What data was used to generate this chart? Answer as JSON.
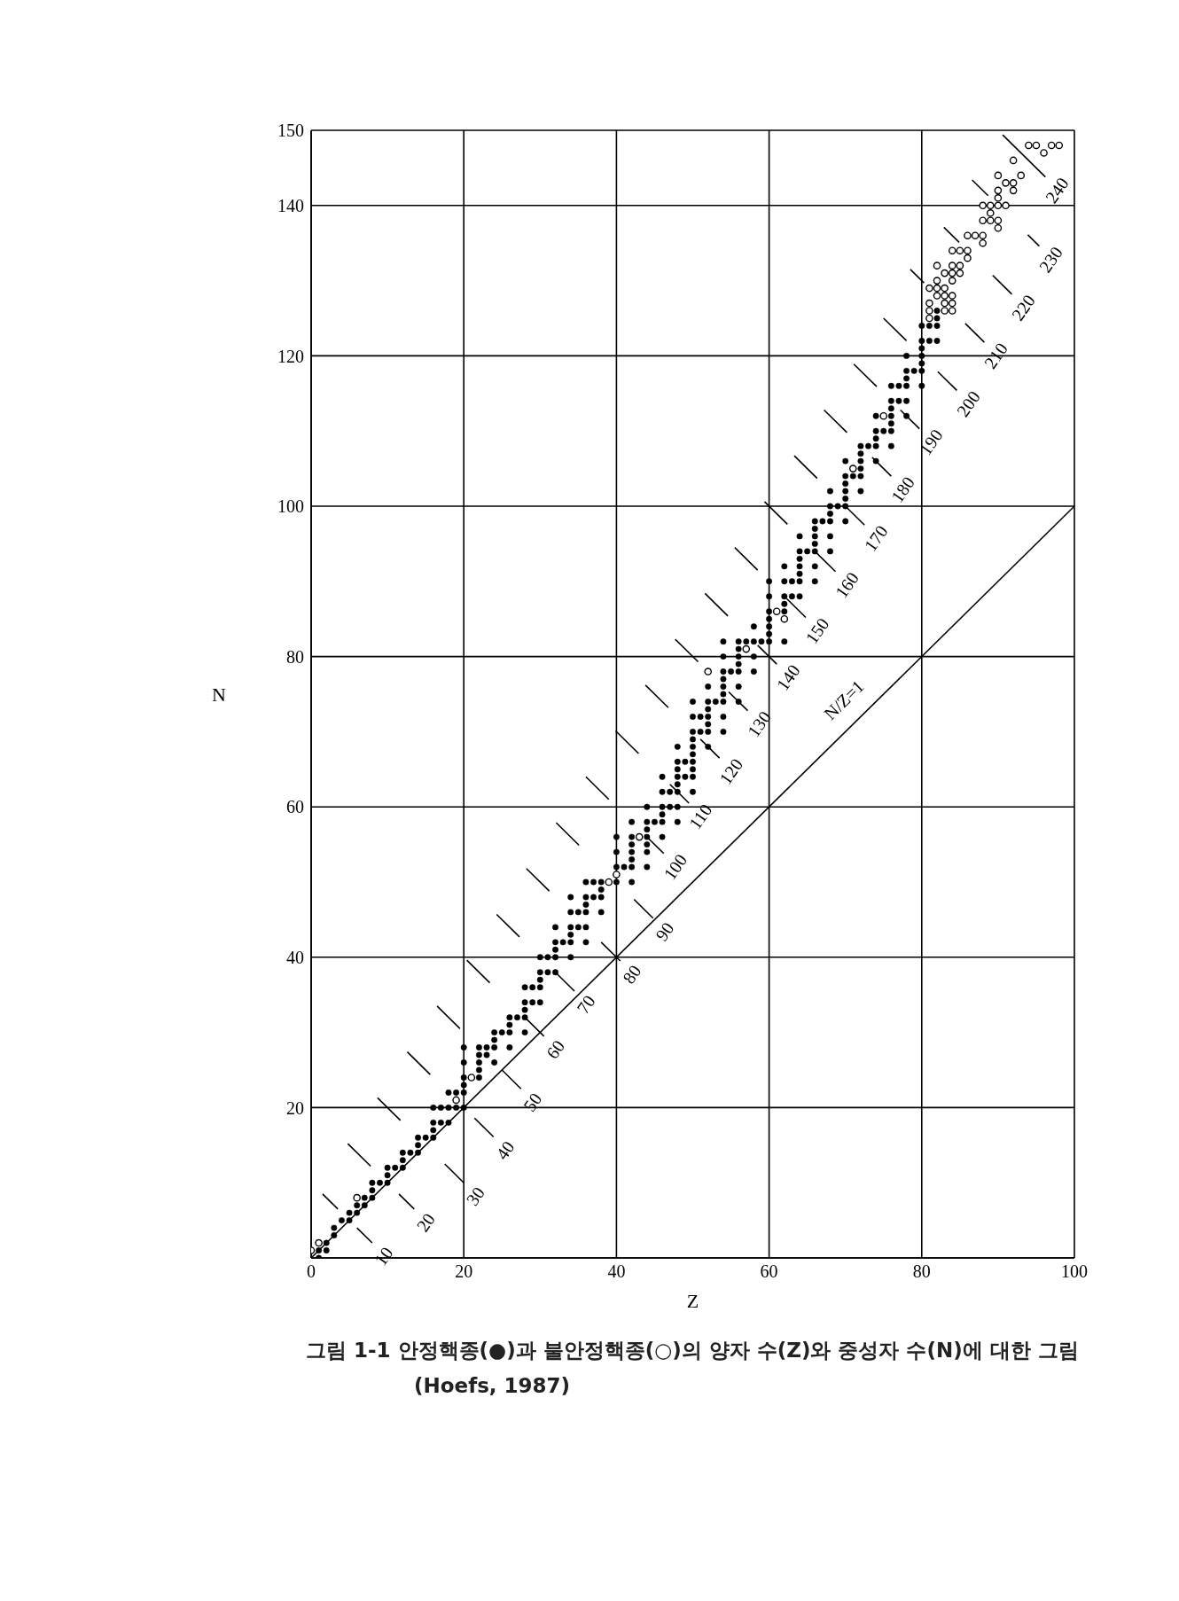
{
  "chart_data": {
    "type": "scatter",
    "xlabel": "Z",
    "ylabel": "N",
    "xlim": [
      0,
      100
    ],
    "xticks": [
      0,
      20,
      40,
      60,
      80,
      100
    ],
    "ylim": [
      0,
      150
    ],
    "yticks": [
      {
        "value": 0,
        "label": null
      },
      20,
      40,
      60,
      80,
      100,
      120,
      140,
      150
    ],
    "grid": true,
    "marker": "circle",
    "series": [
      {
        "color": "#000000",
        "x": [
          1,
          1,
          2,
          2,
          3,
          3,
          4,
          5,
          5,
          6,
          6,
          7,
          7,
          8,
          8,
          8,
          9,
          10,
          10,
          10,
          11,
          12,
          12,
          12,
          13,
          14,
          14,
          14,
          15,
          16,
          16,
          16,
          16,
          17,
          17,
          18,
          18,
          18,
          19,
          19,
          20,
          20,
          20,
          20,
          20,
          20,
          22,
          22,
          22,
          22,
          22,
          23,
          23,
          24,
          24,
          24,
          24,
          25,
          26,
          26,
          26,
          26,
          27,
          28,
          28,
          28,
          28,
          28,
          29,
          29,
          30,
          30,
          30,
          30,
          30,
          31,
          31,
          32,
          32,
          32,
          32,
          32,
          33,
          34,
          34,
          34,
          34,
          34,
          34,
          35,
          35,
          36,
          36,
          36,
          36,
          36,
          36,
          37,
          37,
          38,
          38,
          38,
          38,
          40,
          40,
          40,
          40,
          41,
          42,
          42,
          42,
          42,
          42,
          42,
          42,
          44,
          44,
          44,
          44,
          44,
          44,
          44,
          45,
          46,
          46,
          46,
          46,
          46,
          46,
          47,
          47,
          48,
          48,
          48,
          48,
          48,
          48,
          48,
          48,
          49,
          49,
          50,
          50,
          50,
          50,
          50,
          50,
          50,
          50,
          50,
          50,
          51,
          51,
          52,
          52,
          52,
          52,
          52,
          52,
          52,
          53,
          54,
          54,
          54,
          54,
          54,
          54,
          54,
          54,
          54,
          55,
          56,
          56,
          56,
          56,
          56,
          56,
          56,
          57,
          58,
          58,
          58,
          58,
          59,
          60,
          60,
          60,
          60,
          60,
          60,
          60,
          62,
          62,
          62,
          62,
          62,
          62,
          63,
          63,
          64,
          64,
          64,
          64,
          64,
          64,
          64,
          65,
          66,
          66,
          66,
          66,
          66,
          66,
          66,
          67,
          68,
          68,
          68,
          68,
          68,
          68,
          69,
          70,
          70,
          70,
          70,
          70,
          70,
          70,
          71,
          72,
          72,
          72,
          72,
          72,
          72,
          73,
          74,
          74,
          74,
          74,
          74,
          75,
          76,
          76,
          76,
          76,
          76,
          76,
          76,
          77,
          77,
          78,
          78,
          78,
          78,
          78,
          78,
          79,
          80,
          80,
          80,
          80,
          80,
          80,
          80,
          81,
          81,
          82,
          82,
          82,
          82
        ],
        "values": [
          0,
          1,
          1,
          2,
          3,
          4,
          5,
          5,
          6,
          6,
          7,
          7,
          8,
          8,
          9,
          10,
          10,
          10,
          11,
          12,
          12,
          12,
          13,
          14,
          14,
          14,
          15,
          16,
          16,
          16,
          17,
          18,
          20,
          18,
          20,
          18,
          20,
          22,
          20,
          22,
          20,
          22,
          23,
          24,
          26,
          28,
          24,
          25,
          26,
          27,
          28,
          27,
          28,
          26,
          28,
          29,
          30,
          30,
          28,
          30,
          31,
          32,
          32,
          30,
          32,
          33,
          34,
          36,
          34,
          36,
          34,
          36,
          37,
          38,
          40,
          38,
          40,
          38,
          40,
          41,
          42,
          44,
          42,
          40,
          42,
          43,
          44,
          46,
          48,
          44,
          46,
          42,
          44,
          46,
          47,
          48,
          50,
          48,
          50,
          46,
          48,
          49,
          50,
          50,
          52,
          54,
          56,
          52,
          50,
          52,
          53,
          54,
          55,
          56,
          58,
          52,
          54,
          55,
          56,
          57,
          58,
          60,
          58,
          56,
          58,
          59,
          60,
          62,
          64,
          60,
          62,
          58,
          60,
          62,
          63,
          64,
          65,
          66,
          68,
          64,
          66,
          62,
          64,
          65,
          66,
          67,
          68,
          69,
          70,
          72,
          74,
          70,
          72,
          68,
          70,
          71,
          72,
          73,
          74,
          76,
          74,
          70,
          72,
          74,
          75,
          76,
          77,
          78,
          80,
          82,
          78,
          74,
          76,
          78,
          79,
          80,
          81,
          82,
          82,
          78,
          80,
          82,
          84,
          82,
          82,
          83,
          84,
          85,
          86,
          88,
          90,
          82,
          86,
          87,
          88,
          90,
          92,
          88,
          90,
          88,
          90,
          91,
          92,
          93,
          94,
          96,
          94,
          90,
          92,
          94,
          95,
          96,
          97,
          98,
          98,
          94,
          96,
          98,
          99,
          100,
          102,
          100,
          98,
          100,
          101,
          102,
          103,
          104,
          106,
          104,
          102,
          104,
          105,
          106,
          107,
          108,
          108,
          106,
          108,
          109,
          110,
          112,
          110,
          108,
          110,
          111,
          112,
          113,
          114,
          116,
          114,
          116,
          112,
          114,
          116,
          117,
          118,
          120,
          118,
          116,
          118,
          119,
          120,
          121,
          122,
          124,
          122,
          124,
          122,
          124,
          125,
          126
        ]
      },
      {
        "color": "#000000",
        "x": [
          0,
          1,
          6,
          19,
          21,
          39,
          40,
          43,
          52,
          57,
          61,
          62,
          71,
          75,
          81,
          81,
          81,
          81,
          82,
          82,
          82,
          82,
          83,
          83,
          83,
          83,
          83,
          84,
          84,
          84,
          84,
          84,
          84,
          84,
          85,
          85,
          85,
          86,
          86,
          86,
          87,
          88,
          88,
          88,
          89,
          89,
          88,
          89,
          90,
          90,
          90,
          90,
          90,
          90,
          91,
          91,
          92,
          92,
          92,
          93,
          94,
          95,
          96,
          97,
          98
        ],
        "values": [
          1,
          2,
          8,
          21,
          24,
          50,
          51,
          56,
          78,
          81,
          86,
          85,
          105,
          112,
          129,
          127,
          126,
          125,
          132,
          130,
          129,
          128,
          131,
          129,
          128,
          127,
          126,
          132,
          131,
          130,
          128,
          127,
          126,
          134,
          134,
          132,
          131,
          134,
          133,
          136,
          136,
          136,
          135,
          138,
          138,
          139,
          140,
          140,
          138,
          137,
          140,
          141,
          142,
          144,
          140,
          143,
          142,
          143,
          146,
          144,
          148,
          148,
          147,
          148,
          148
        ]
      },
      {
        "type": "line",
        "name": "N/Z=1",
        "color": "#000000",
        "marker": "none",
        "x": [
          0,
          100
        ],
        "values": [
          0,
          100
        ]
      },
      {
        "type": "line",
        "name": "10",
        "color": "#000000",
        "marker": "none",
        "x": [
          1.5,
          3.5,
          4.7,
          6,
          8
        ],
        "values": [
          8.5,
          6.5,
          null,
          4,
          2
        ]
      },
      {
        "type": "line",
        "name": "20",
        "color": "#000000",
        "marker": "none",
        "x": [
          4.8,
          7.8,
          9.6,
          11.5,
          13.5
        ],
        "values": [
          15.2,
          12.2,
          null,
          8.5,
          6.5
        ]
      },
      {
        "type": "line",
        "name": "30",
        "color": "#000000",
        "marker": "none",
        "x": [
          8.7,
          11.7,
          14.6,
          17.5,
          20
        ],
        "values": [
          21.3,
          18.3,
          null,
          12.5,
          10
        ]
      },
      {
        "type": "line",
        "name": "40",
        "color": "#000000",
        "marker": "none",
        "x": [
          12.6,
          15.6,
          18.5,
          21.4,
          23.9
        ],
        "values": [
          27.4,
          24.4,
          null,
          18.6,
          16.1
        ]
      },
      {
        "type": "line",
        "name": "50",
        "color": "#000000",
        "marker": "none",
        "x": [
          16.5,
          19.5,
          22.2,
          25,
          27.5
        ],
        "values": [
          33.5,
          30.5,
          null,
          25,
          22.5
        ]
      },
      {
        "type": "line",
        "name": "60",
        "color": "#000000",
        "marker": "none",
        "x": [
          20.4,
          23.4,
          25.7,
          28,
          30.5
        ],
        "values": [
          39.6,
          36.6,
          null,
          32,
          29.5
        ]
      },
      {
        "type": "line",
        "name": "70",
        "color": "#000000",
        "marker": "none",
        "x": [
          24.3,
          27.3,
          29.6,
          32,
          34.5
        ],
        "values": [
          45.7,
          42.7,
          null,
          38,
          35.5
        ]
      },
      {
        "type": "line",
        "name": "80",
        "color": "#000000",
        "marker": "none",
        "x": [
          28.2,
          31.2,
          34.6,
          38,
          40.5
        ],
        "values": [
          51.8,
          48.8,
          null,
          42,
          39.5
        ]
      },
      {
        "type": "line",
        "name": "90",
        "color": "#000000",
        "marker": "none",
        "x": [
          32.1,
          35.1,
          38.7,
          42.3,
          44.8
        ],
        "values": [
          57.9,
          54.9,
          null,
          47.7,
          45.2
        ]
      },
      {
        "type": "line",
        "name": "100",
        "color": "#000000",
        "marker": "none",
        "x": [
          36,
          39,
          41.3,
          43.7,
          46.2
        ],
        "values": [
          64,
          61,
          null,
          56.3,
          53.8
        ]
      },
      {
        "type": "line",
        "name": "110",
        "color": "#000000",
        "marker": "none",
        "x": [
          39.9,
          42.9,
          45,
          47,
          49.5
        ],
        "values": [
          70.1,
          67.1,
          null,
          63,
          60.5
        ]
      },
      {
        "type": "line",
        "name": "120",
        "color": "#000000",
        "marker": "none",
        "x": [
          43.8,
          46.8,
          48.9,
          51,
          53.5
        ],
        "values": [
          76.2,
          73.2,
          null,
          69,
          66.5
        ]
      },
      {
        "type": "line",
        "name": "130",
        "color": "#000000",
        "marker": "none",
        "x": [
          47.7,
          50.7,
          52.7,
          54.7,
          57.2
        ],
        "values": [
          82.3,
          79.3,
          null,
          75.3,
          72.8
        ]
      },
      {
        "type": "line",
        "name": "140",
        "color": "#000000",
        "marker": "none",
        "x": [
          51.6,
          54.6,
          56.5,
          58.5,
          61
        ],
        "values": [
          88.4,
          85.4,
          null,
          81.5,
          79
        ]
      },
      {
        "type": "line",
        "name": "150",
        "color": "#000000",
        "marker": "none",
        "x": [
          55.5,
          58.5,
          60.4,
          62.3,
          64.8
        ],
        "values": [
          94.5,
          91.5,
          null,
          87.7,
          85.2
        ]
      },
      {
        "type": "line",
        "name": "160",
        "color": "#000000",
        "marker": "none",
        "x": [
          59.4,
          62.4,
          64.3,
          66.2,
          68.7
        ],
        "values": [
          100.6,
          97.6,
          null,
          93.8,
          91.3
        ]
      },
      {
        "type": "line",
        "name": "170",
        "color": "#000000",
        "marker": "none",
        "x": [
          63.3,
          66.3,
          68.1,
          70,
          72.5
        ],
        "values": [
          106.7,
          103.7,
          null,
          100,
          97.5
        ]
      },
      {
        "type": "line",
        "name": "180",
        "color": "#000000",
        "marker": "none",
        "x": [
          67.2,
          70.2,
          71.8,
          73.5,
          76
        ],
        "values": [
          112.8,
          109.8,
          null,
          106.5,
          104
        ]
      },
      {
        "type": "line",
        "name": "190",
        "color": "#000000",
        "marker": "none",
        "x": [
          71.1,
          74.1,
          75.6,
          77.2,
          79.7
        ],
        "values": [
          118.9,
          115.9,
          null,
          112.8,
          110.3
        ]
      },
      {
        "type": "line",
        "name": "200",
        "color": "#000000",
        "marker": "none",
        "x": [
          75,
          78,
          80,
          82.1,
          84.6
        ],
        "values": [
          125,
          122,
          null,
          117.9,
          115.4
        ]
      },
      {
        "type": "line",
        "name": "210",
        "color": "#000000",
        "marker": "none",
        "x": [
          78.5,
          80.3,
          83,
          85.7,
          88.2
        ],
        "values": [
          131.5,
          129.7,
          null,
          124.3,
          121.8
        ]
      },
      {
        "type": "line",
        "name": "220",
        "color": "#000000",
        "marker": "none",
        "x": [
          82.9,
          84.9,
          87.1,
          89.3,
          91.8
        ],
        "values": [
          137.1,
          135.1,
          null,
          130.7,
          128.2
        ]
      },
      {
        "type": "line",
        "name": "230",
        "color": "#000000",
        "marker": "none",
        "x": [
          86.6,
          88.7,
          91.3,
          93.9,
          95.4
        ],
        "values": [
          143.4,
          141.3,
          null,
          136.1,
          134.6
        ]
      },
      {
        "type": "line",
        "name": "240",
        "color": "#000000",
        "marker": "none",
        "x": [
          90.6,
          96.2
        ],
        "values": [
          149.4,
          143.8
        ]
      }
    ],
    "annotations": [
      "그림 1-1 안정핵종(●)과 불안정핵종(○)의 양자 수(Z)와 중성자 수(N)에 대한 그림(Hoefs, 1987)"
    ]
  }
}
